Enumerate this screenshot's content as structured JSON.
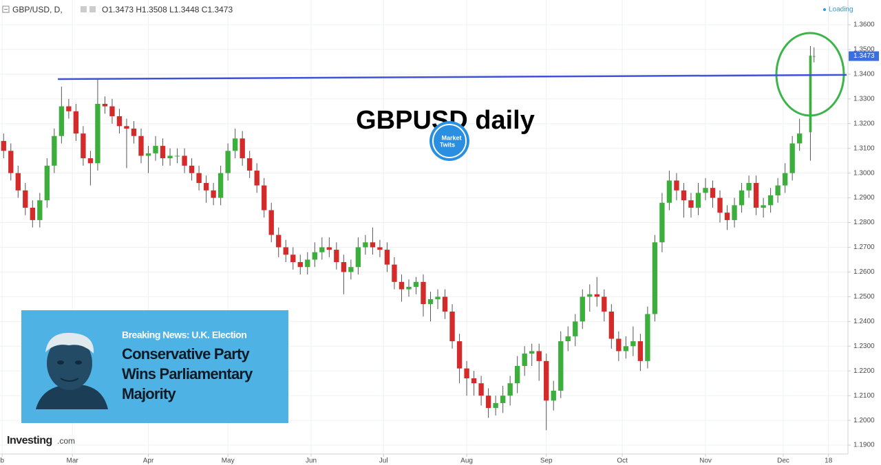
{
  "header": {
    "symbol": "GBP/USD, D,",
    "ohlc": "O1.3473 H1.3508 L1.3448 C1.3473",
    "status": "Loading"
  },
  "chart_data": {
    "type": "candlestick",
    "title": "GBPUSD daily",
    "x": [
      0,
      2,
      4,
      6,
      8,
      10,
      12,
      14,
      16,
      18,
      20,
      22,
      24,
      26,
      28,
      30,
      32,
      34,
      36,
      38,
      40,
      42,
      44,
      46,
      48,
      50,
      52,
      54,
      56,
      58,
      60,
      62,
      64,
      66,
      68,
      70,
      72,
      74,
      76,
      78,
      80,
      82,
      84,
      86,
      88,
      90,
      92,
      94,
      96,
      98,
      100,
      102,
      104,
      106,
      108,
      110,
      112,
      114,
      116,
      118,
      120,
      122,
      124,
      126,
      128,
      130,
      132,
      134,
      136,
      138,
      140,
      142,
      144,
      146,
      148,
      150,
      152,
      154,
      156,
      158,
      160,
      162,
      164,
      166,
      168,
      170,
      172,
      174,
      176,
      178,
      180,
      182,
      184,
      186,
      188,
      190,
      192,
      194,
      196,
      198,
      200,
      202,
      204,
      206,
      208,
      210,
      212,
      214,
      216,
      218,
      220,
      223,
      224
    ],
    "open": [
      1.313,
      1.309,
      1.3,
      1.293,
      1.286,
      1.281,
      1.289,
      1.303,
      1.315,
      1.327,
      1.325,
      1.316,
      1.306,
      1.304,
      1.328,
      1.327,
      1.323,
      1.319,
      1.318,
      1.315,
      1.307,
      1.308,
      1.311,
      1.306,
      1.307,
      1.307,
      1.303,
      1.3,
      1.296,
      1.293,
      1.29,
      1.3,
      1.309,
      1.314,
      1.306,
      1.301,
      1.295,
      1.285,
      1.275,
      1.27,
      1.267,
      1.264,
      1.262,
      1.265,
      1.268,
      1.27,
      1.269,
      1.264,
      1.26,
      1.262,
      1.27,
      1.272,
      1.27,
      1.269,
      1.263,
      1.256,
      1.253,
      1.254,
      1.256,
      1.247,
      1.249,
      1.25,
      1.244,
      1.232,
      1.221,
      1.217,
      1.215,
      1.21,
      1.205,
      1.207,
      1.21,
      1.215,
      1.222,
      1.227,
      1.228,
      1.224,
      1.208,
      1.212,
      1.232,
      1.234,
      1.24,
      1.25,
      1.251,
      1.25,
      1.244,
      1.233,
      1.228,
      1.23,
      1.232,
      1.224,
      1.243,
      1.272,
      1.288,
      1.297,
      1.293,
      1.289,
      1.286,
      1.292,
      1.294,
      1.29,
      1.284,
      1.281,
      1.287,
      1.293,
      1.296,
      1.286,
      1.287,
      1.291,
      1.295,
      1.3,
      1.312,
      1.3165,
      1.3473
    ],
    "high": [
      1.316,
      1.312,
      1.303,
      1.296,
      1.289,
      1.292,
      1.306,
      1.318,
      1.335,
      1.33,
      1.328,
      1.319,
      1.309,
      1.338,
      1.331,
      1.33,
      1.326,
      1.322,
      1.321,
      1.318,
      1.311,
      1.315,
      1.314,
      1.31,
      1.31,
      1.31,
      1.306,
      1.303,
      1.299,
      1.296,
      1.303,
      1.312,
      1.318,
      1.317,
      1.309,
      1.304,
      1.298,
      1.288,
      1.278,
      1.273,
      1.27,
      1.267,
      1.268,
      1.272,
      1.274,
      1.274,
      1.272,
      1.267,
      1.265,
      1.274,
      1.275,
      1.278,
      1.273,
      1.272,
      1.266,
      1.259,
      1.257,
      1.258,
      1.259,
      1.252,
      1.253,
      1.253,
      1.247,
      1.235,
      1.224,
      1.22,
      1.218,
      1.213,
      1.21,
      1.214,
      1.218,
      1.226,
      1.23,
      1.231,
      1.231,
      1.227,
      1.216,
      1.236,
      1.238,
      1.243,
      1.253,
      1.255,
      1.258,
      1.253,
      1.247,
      1.236,
      1.234,
      1.238,
      1.235,
      1.246,
      1.275,
      1.292,
      1.301,
      1.3,
      1.296,
      1.292,
      1.296,
      1.298,
      1.297,
      1.293,
      1.287,
      1.29,
      1.296,
      1.299,
      1.299,
      1.29,
      1.294,
      1.298,
      1.304,
      1.315,
      1.322,
      1.3514,
      1.3508
    ],
    "low": [
      1.306,
      1.297,
      1.29,
      1.283,
      1.278,
      1.278,
      1.286,
      1.3,
      1.312,
      1.322,
      1.313,
      1.303,
      1.295,
      1.301,
      1.324,
      1.32,
      1.316,
      1.302,
      1.312,
      1.304,
      1.3,
      1.305,
      1.303,
      1.303,
      1.304,
      1.3,
      1.297,
      1.293,
      1.288,
      1.287,
      1.287,
      1.297,
      1.306,
      1.303,
      1.298,
      1.292,
      1.282,
      1.272,
      1.266,
      1.264,
      1.261,
      1.259,
      1.259,
      1.262,
      1.265,
      1.266,
      1.261,
      1.251,
      1.257,
      1.259,
      1.267,
      1.267,
      1.266,
      1.26,
      1.253,
      1.248,
      1.25,
      1.251,
      1.242,
      1.24,
      1.245,
      1.241,
      1.229,
      1.215,
      1.21,
      1.21,
      1.206,
      1.201,
      1.202,
      1.203,
      1.206,
      1.211,
      1.218,
      1.222,
      1.216,
      1.196,
      1.204,
      1.209,
      1.228,
      1.23,
      1.237,
      1.244,
      1.246,
      1.24,
      1.229,
      1.224,
      1.225,
      1.226,
      1.22,
      1.221,
      1.24,
      1.268,
      1.285,
      1.289,
      1.282,
      1.282,
      1.283,
      1.289,
      1.286,
      1.28,
      1.277,
      1.278,
      1.284,
      1.29,
      1.283,
      1.282,
      1.284,
      1.288,
      1.292,
      1.297,
      1.309,
      1.305,
      1.3448
    ],
    "close": [
      1.309,
      1.3,
      1.293,
      1.286,
      1.281,
      1.289,
      1.303,
      1.315,
      1.327,
      1.325,
      1.316,
      1.306,
      1.304,
      1.328,
      1.327,
      1.323,
      1.319,
      1.318,
      1.315,
      1.307,
      1.308,
      1.311,
      1.306,
      1.307,
      1.307,
      1.303,
      1.3,
      1.296,
      1.293,
      1.29,
      1.3,
      1.309,
      1.314,
      1.306,
      1.301,
      1.295,
      1.285,
      1.275,
      1.27,
      1.267,
      1.264,
      1.262,
      1.265,
      1.268,
      1.27,
      1.269,
      1.264,
      1.26,
      1.262,
      1.27,
      1.272,
      1.27,
      1.269,
      1.263,
      1.256,
      1.253,
      1.254,
      1.256,
      1.247,
      1.249,
      1.25,
      1.244,
      1.232,
      1.221,
      1.217,
      1.215,
      1.21,
      1.205,
      1.207,
      1.21,
      1.215,
      1.222,
      1.227,
      1.228,
      1.224,
      1.208,
      1.212,
      1.232,
      1.234,
      1.24,
      1.25,
      1.251,
      1.25,
      1.244,
      1.233,
      1.228,
      1.23,
      1.232,
      1.224,
      1.243,
      1.272,
      1.288,
      1.297,
      1.293,
      1.289,
      1.286,
      1.292,
      1.294,
      1.29,
      1.284,
      1.281,
      1.287,
      1.293,
      1.296,
      1.286,
      1.287,
      1.291,
      1.295,
      1.3,
      1.312,
      1.316,
      1.3475,
      1.3473
    ],
    "up_color": "#3cae3c",
    "down_color": "#d42a2a",
    "xlim": [
      -1,
      233
    ],
    "ylim": [
      1.1864,
      1.37
    ],
    "yticks": [
      {
        "value": 1.19,
        "label": "1.1900"
      },
      {
        "value": 1.2,
        "label": "1.2000"
      },
      {
        "value": 1.21,
        "label": "1.2100"
      },
      {
        "value": 1.22,
        "label": "1.2200"
      },
      {
        "value": 1.23,
        "label": "1.2300"
      },
      {
        "value": 1.24,
        "label": "1.2400"
      },
      {
        "value": 1.25,
        "label": "1.2500"
      },
      {
        "value": 1.26,
        "label": "1.2600"
      },
      {
        "value": 1.27,
        "label": "1.2700"
      },
      {
        "value": 1.28,
        "label": "1.2800"
      },
      {
        "value": 1.29,
        "label": "1.2900"
      },
      {
        "value": 1.3,
        "label": "1.3000"
      },
      {
        "value": 1.31,
        "label": "1.3100"
      },
      {
        "value": 1.32,
        "label": "1.3200"
      },
      {
        "value": 1.33,
        "label": "1.3300"
      },
      {
        "value": 1.34,
        "label": "1.3400"
      },
      {
        "value": 1.35,
        "label": "1.3500"
      },
      {
        "value": 1.36,
        "label": "1.3600"
      }
    ],
    "xticks": [
      {
        "value": -0.4,
        "label": "b"
      },
      {
        "value": 19,
        "label": "Mar"
      },
      {
        "value": 40,
        "label": "Apr"
      },
      {
        "value": 62,
        "label": "May"
      },
      {
        "value": 85,
        "label": "Jun"
      },
      {
        "value": 105,
        "label": "Jul"
      },
      {
        "value": 128,
        "label": "Aug"
      },
      {
        "value": 150,
        "label": "Sep"
      },
      {
        "value": 171,
        "label": "Oct"
      },
      {
        "value": 194,
        "label": "Nov"
      },
      {
        "value": 215.5,
        "label": "Dec"
      },
      {
        "value": 228,
        "label": "18"
      }
    ],
    "grid": true,
    "last_price_label": "1.3473",
    "trendline": {
      "x": [
        15,
        233
      ],
      "y": [
        1.338,
        1.3397
      ],
      "color": "#3f51d9"
    }
  },
  "watermark": {
    "line1": "Market",
    "line2": "Twits"
  },
  "news": {
    "kicker": "Breaking News: U.K. Election",
    "headline": [
      "Conservative Party",
      "Wins Parliamentary",
      "Majority"
    ]
  },
  "footer": {
    "brand": "Investing",
    "suffix": ".com"
  }
}
